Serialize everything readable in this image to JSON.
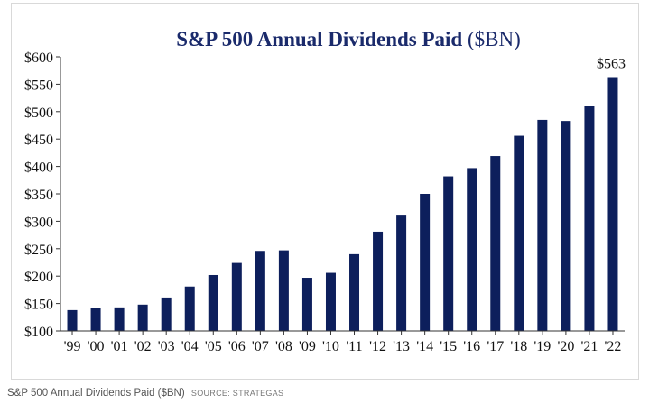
{
  "colors": {
    "bar": "#0d1f5c",
    "title": "#1a2a6b",
    "axis_text": "#111111",
    "axis_line": "#333333"
  },
  "caption": {
    "title": "S&P 500 Annual Dividends Paid ($BN)",
    "source": "SOURCE: STRATEGAS"
  },
  "chart_data": {
    "type": "bar",
    "title": "S&P 500 Annual Dividends Paid ($BN)",
    "title_main": "S&P 500 Annual Dividends Paid",
    "title_unit": "($BN)",
    "xlabel": "",
    "ylabel": "",
    "categories": [
      "'99",
      "'00",
      "'01",
      "'02",
      "'03",
      "'04",
      "'05",
      "'06",
      "'07",
      "'08",
      "'09",
      "'10",
      "'11",
      "'12",
      "'13",
      "'14",
      "'15",
      "'16",
      "'17",
      "'18",
      "'19",
      "'20",
      "'21",
      "'22"
    ],
    "values": [
      138,
      142,
      143,
      148,
      161,
      181,
      202,
      224,
      246,
      247,
      197,
      206,
      240,
      281,
      312,
      350,
      382,
      397,
      419,
      456,
      485,
      483,
      511,
      563
    ],
    "ylim": [
      100,
      600
    ],
    "yticks": [
      100,
      150,
      200,
      250,
      300,
      350,
      400,
      450,
      500,
      550,
      600
    ],
    "ytick_labels": [
      "$100",
      "$150",
      "$200",
      "$250",
      "$300",
      "$350",
      "$400",
      "$450",
      "$500",
      "$550",
      "$600"
    ],
    "annotations": [
      {
        "category": "'22",
        "text": "$563"
      }
    ],
    "grid": false,
    "legend": "none"
  }
}
